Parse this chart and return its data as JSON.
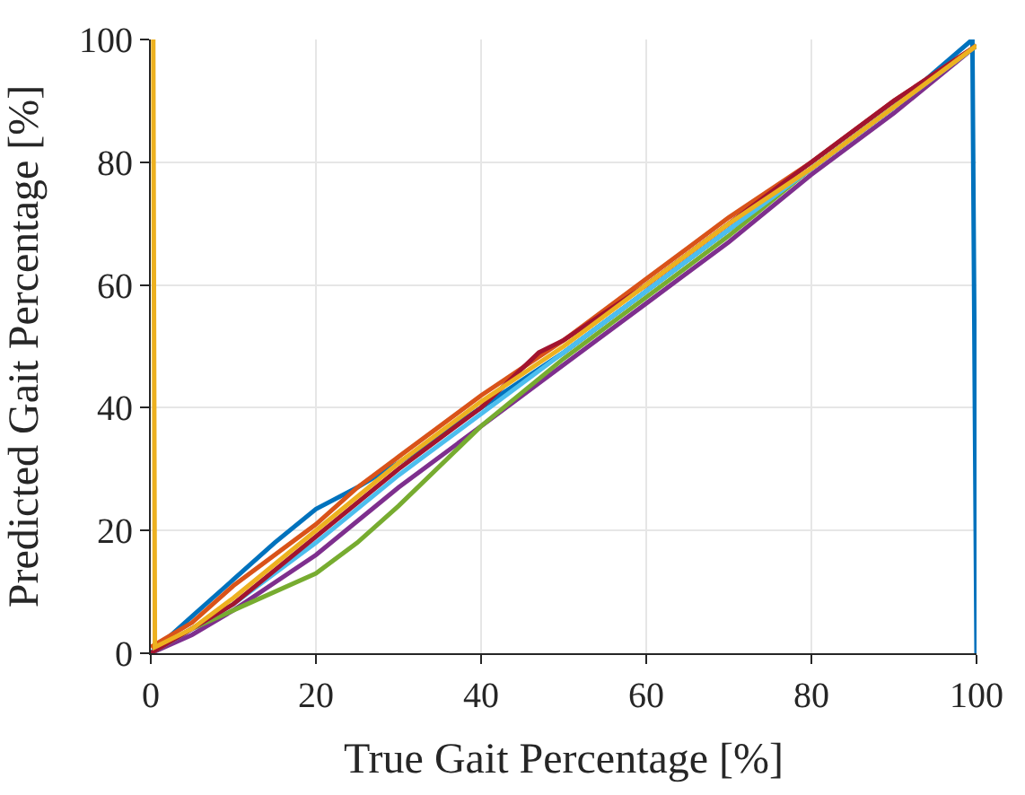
{
  "chart_data": {
    "type": "line",
    "xlabel": "True Gait Percentage [%]",
    "ylabel": "Predicted Gait Percentage [%]",
    "xlim": [
      0,
      100
    ],
    "ylim": [
      0,
      100
    ],
    "xticks": [
      0,
      20,
      40,
      60,
      80,
      100
    ],
    "yticks": [
      0,
      20,
      40,
      60,
      80,
      100
    ],
    "grid": true,
    "line_style": "solid",
    "series": [
      {
        "color": "#0072bd",
        "x": [
          0,
          5,
          10,
          15,
          20,
          25,
          30,
          40,
          50,
          60,
          70,
          80,
          90,
          99.5,
          100
        ],
        "values": [
          0,
          6,
          12,
          18,
          23.5,
          27,
          31,
          40,
          49,
          59,
          69,
          79,
          89,
          100,
          0
        ]
      },
      {
        "color": "#d95319",
        "x": [
          0,
          5,
          10,
          20,
          25,
          30,
          40,
          50,
          60,
          70,
          80,
          90,
          100
        ],
        "values": [
          1,
          5,
          11,
          21,
          27,
          32,
          42,
          51,
          61,
          71,
          80,
          90,
          99
        ]
      },
      {
        "color": "#7e2f8e",
        "x": [
          0,
          5,
          10,
          20,
          30,
          40,
          50,
          60,
          70,
          80,
          90,
          100
        ],
        "values": [
          0,
          3,
          7,
          16,
          27,
          37,
          47,
          57,
          67,
          78,
          88,
          99
        ]
      },
      {
        "color": "#77ac30",
        "x": [
          0,
          5,
          10,
          20,
          25,
          30,
          40,
          50,
          60,
          70,
          80,
          90,
          100
        ],
        "values": [
          0,
          4,
          7,
          13,
          18,
          24,
          37,
          48,
          58,
          68,
          79,
          89,
          99
        ]
      },
      {
        "color": "#4dbeee",
        "x": [
          0,
          10,
          20,
          30,
          40,
          50,
          60,
          70,
          80,
          90,
          100
        ],
        "values": [
          0,
          8,
          18,
          29,
          39,
          49,
          59,
          69,
          79,
          89,
          99
        ]
      },
      {
        "color": "#a2142f",
        "x": [
          0,
          10,
          20,
          30,
          40,
          47,
          50,
          60,
          70,
          80,
          90,
          100
        ],
        "values": [
          0,
          8,
          19,
          30,
          40,
          49,
          51,
          60,
          70,
          80,
          90,
          99
        ]
      },
      {
        "color": "#edb120",
        "x": [
          0.3,
          0.5,
          5,
          10,
          20,
          30,
          40,
          50,
          60,
          70,
          80,
          90,
          100
        ],
        "values": [
          100,
          1,
          4,
          9,
          20,
          31,
          41,
          50,
          60,
          70,
          79,
          89,
          99
        ]
      }
    ]
  }
}
